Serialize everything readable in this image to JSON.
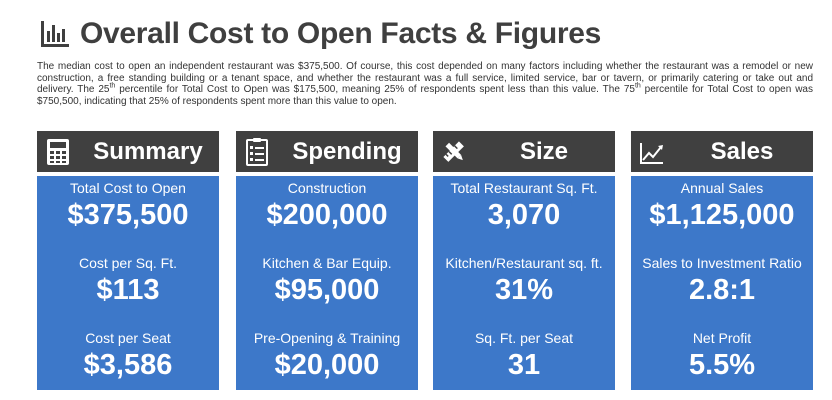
{
  "header": {
    "title": "Overall Cost to Open Facts & Figures",
    "icon": "bar-chart-icon"
  },
  "intro": {
    "p1": "The median cost to open an independent restaurant was $375,500. Of course, this cost depended on many factors including whether the restaurant was a remodel or new construction, a free standing building or a tenant space, and whether the restaurant was a full service, limited service, bar or tavern, or primarily catering or take out and delivery. The 25",
    "sup1": "th",
    "p2": " percentile for Total Cost to Open was $175,500, meaning 25% of respondents spent less than this value. The 75",
    "sup2": "th",
    "p3": " percentile for Total Cost to open was $750,500, indicating that 25% of respondents spent more than this value to open."
  },
  "colors": {
    "card_header": "#404040",
    "card_body": "#3d78c9",
    "title": "#3f3f3f"
  },
  "cards": [
    {
      "title": "Summary",
      "icon": "calculator-icon",
      "metrics": [
        {
          "label": "Total Cost to Open",
          "value": "$375,500"
        },
        {
          "label": "Cost per Sq. Ft.",
          "value": "$113"
        },
        {
          "label": "Cost per Seat",
          "value": "$3,586"
        }
      ]
    },
    {
      "title": "Spending",
      "icon": "checklist-icon",
      "metrics": [
        {
          "label": "Construction",
          "value": "$200,000"
        },
        {
          "label": "Kitchen & Bar Equip.",
          "value": "$95,000"
        },
        {
          "label": "Pre-Opening & Training",
          "value": "$20,000"
        }
      ]
    },
    {
      "title": "Size",
      "icon": "ruler-pencil-icon",
      "metrics": [
        {
          "label": "Total Restaurant Sq. Ft.",
          "value": "3,070"
        },
        {
          "label": "Kitchen/Restaurant sq. ft.",
          "value": "31%"
        },
        {
          "label": "Sq. Ft. per Seat",
          "value": "31"
        }
      ]
    },
    {
      "title": "Sales",
      "icon": "line-chart-icon",
      "metrics": [
        {
          "label": "Annual Sales",
          "value": "$1,125,000"
        },
        {
          "label": "Sales to Investment Ratio",
          "value": "2.8:1"
        },
        {
          "label": "Net Profit",
          "value": "5.5%"
        }
      ]
    }
  ]
}
